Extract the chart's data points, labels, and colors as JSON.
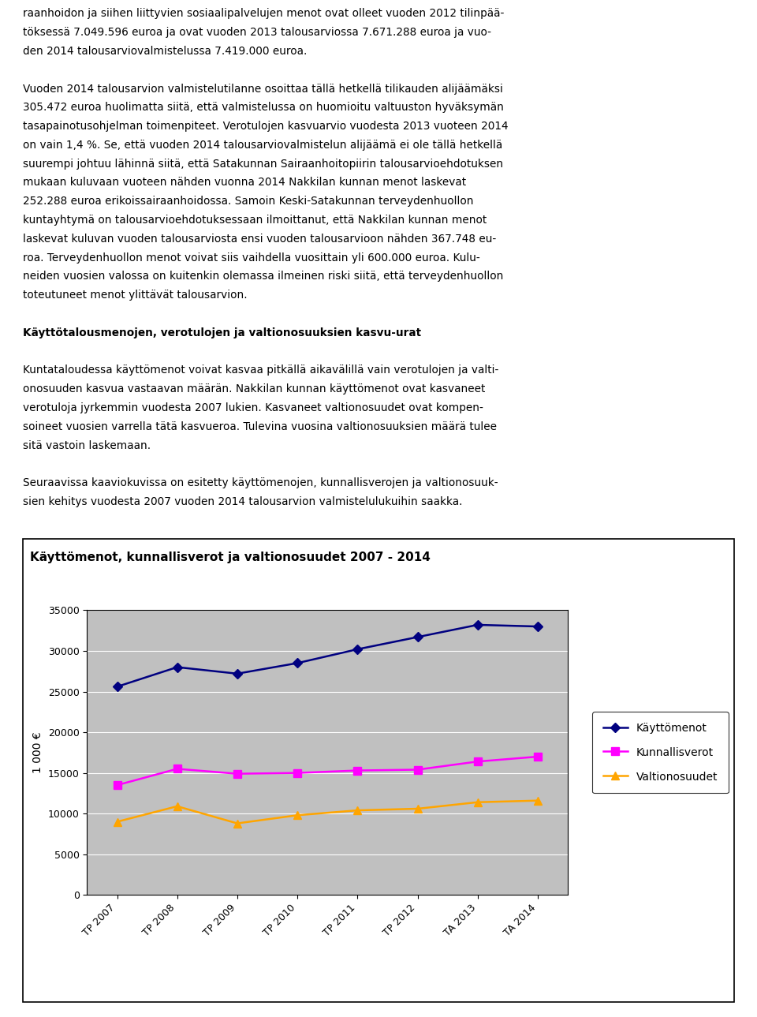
{
  "title_chart": "Käyttömenot, kunnallisverot ja valtionosuudet 2007 - 2014",
  "ylabel": "1 000 €",
  "categories": [
    "TP 2007",
    "TP 2008",
    "TP 2009",
    "TP 2010",
    "TP 2011",
    "TP 2012",
    "TA 2013",
    "TA 2014"
  ],
  "kayttomenot": [
    25600,
    28000,
    27200,
    28500,
    30200,
    31700,
    33200,
    33000
  ],
  "kunnallisverot": [
    13500,
    15500,
    14900,
    15000,
    15300,
    15400,
    16400,
    17000
  ],
  "valtionosuudet": [
    9000,
    10900,
    8800,
    9800,
    10400,
    10600,
    11400,
    11600
  ],
  "kayttomenot_color": "#000080",
  "kunnallisverot_color": "#FF00FF",
  "valtionosuudet_color": "#FFA500",
  "ylim": [
    0,
    35000
  ],
  "yticks": [
    0,
    5000,
    10000,
    15000,
    20000,
    25000,
    30000,
    35000
  ],
  "plot_bg_color": "#C0C0C0",
  "page_bg_color": "#FFFFFF",
  "legend_labels": [
    "Käyttömenot",
    "Kunnallisverot",
    "Valtionosuudet"
  ],
  "lines_text": [
    [
      "raanhoidon ja siihen liittyvien sosiaalipalvelujen menot ovat olleet vuoden 2012 tilinpää-",
      false
    ],
    [
      "töksessä 7.049.596 euroa ja ovat vuoden 2013 talousarviossa 7.671.288 euroa ja vuo-",
      false
    ],
    [
      "den 2014 talousarviovalmistelussa 7.419.000 euroa.",
      false
    ],
    [
      "",
      false
    ],
    [
      "Vuoden 2014 talousarvion valmistelutilanne osoittaa tällä hetkellä tilikauden alijäämäksi",
      false
    ],
    [
      "305.472 euroa huolimatta siitä, että valmistelussa on huomioitu valtuuston hyväksymän",
      false
    ],
    [
      "tasapainotusohjelman toimenpiteet. Verotulojen kasvuarvio vuodesta 2013 vuoteen 2014",
      false
    ],
    [
      "on vain 1,4 %. Se, että vuoden 2014 talousarviovalmistelun alijäämä ei ole tällä hetkellä",
      false
    ],
    [
      "suurempi johtuu lähinnä siitä, että Satakunnan Sairaanhoitopiirin talousarvioehdotuksen",
      false
    ],
    [
      "mukaan kuluvaan vuoteen nähden vuonna 2014 Nakkilan kunnan menot laskevat",
      false
    ],
    [
      "252.288 euroa erikoissairaanhoidossa. Samoin Keski-Satakunnan terveydenhuollon",
      false
    ],
    [
      "kuntayhtymä on talousarvioehdotuksessaan ilmoittanut, että Nakkilan kunnan menot",
      false
    ],
    [
      "laskevat kuluvan vuoden talousarviosta ensi vuoden talousarvioon nähden 367.748 eu-",
      false
    ],
    [
      "roa. Terveydenhuollon menot voivat siis vaihdella vuosittain yli 600.000 euroa. Kulu-",
      false
    ],
    [
      "neiden vuosien valossa on kuitenkin olemassa ilmeinen riski siitä, että terveydenhuollon",
      false
    ],
    [
      "toteutuneet menot ylittävät talousarvion.",
      false
    ],
    [
      "",
      false
    ],
    [
      "Käyttötalousmenojen, verotulojen ja valtionosuuksien kasvu-urat",
      true
    ],
    [
      "",
      false
    ],
    [
      "Kuntataloudessa käyttömenot voivat kasvaa pitkällä aikavälillä vain verotulojen ja valti-",
      false
    ],
    [
      "onosuuden kasvua vastaavan määrän. Nakkilan kunnan käyttömenot ovat kasvaneet",
      false
    ],
    [
      "verotuloja jyrkemmin vuodesta 2007 lukien. Kasvaneet valtionosuudet ovat kompen-",
      false
    ],
    [
      "soineet vuosien varrella tätä kasvueroa. Tulevina vuosina valtionosuuksien määrä tulee",
      false
    ],
    [
      "sitä vastoin laskemaan.",
      false
    ],
    [
      "",
      false
    ],
    [
      "Seuraavissa kaaviokuvissa on esitetty käyttömenojen, kunnallisverojen ja valtionosuuk-",
      false
    ],
    [
      "sien kehitys vuodesta 2007 vuoden 2014 talousarvion valmistelulukuihin saakka.",
      false
    ]
  ]
}
